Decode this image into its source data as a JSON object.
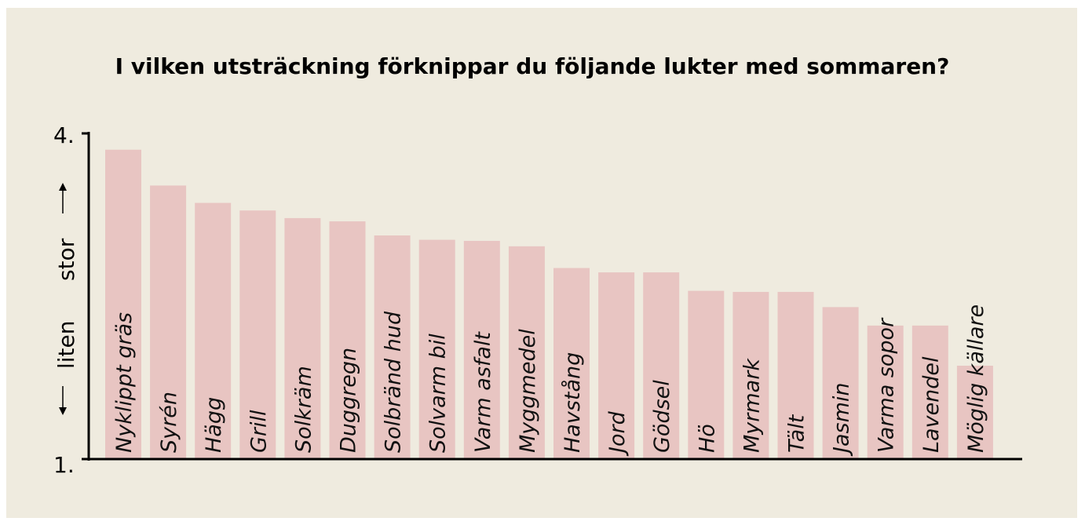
{
  "chart_data": {
    "type": "bar",
    "title": "I vilken utsträckning förknippar du följande lukter med sommaren?",
    "ylabel": {
      "low": "liten",
      "high": "stor"
    },
    "ylim": [
      1,
      4
    ],
    "yticks": [
      "4.",
      "1."
    ],
    "bar_color": "#e8c5c2",
    "categories": [
      "Nyklippt gräs",
      "Syrén",
      "Hägg",
      "Grill",
      "Solkräm",
      "Duggregn",
      "Solbränd hud",
      "Solvarm bil",
      "Varm asfalt",
      "Myggmedel",
      "Havstång",
      "Jord",
      "Gödsel",
      "Hö",
      "Myrmark",
      "Tält",
      "Jasmin",
      "Varma sopor",
      "Lavendel",
      "Möglig källare"
    ],
    "values": [
      3.85,
      3.52,
      3.36,
      3.29,
      3.22,
      3.19,
      3.06,
      3.02,
      3.01,
      2.96,
      2.76,
      2.72,
      2.72,
      2.55,
      2.54,
      2.54,
      2.4,
      2.23,
      2.23,
      1.86
    ]
  }
}
